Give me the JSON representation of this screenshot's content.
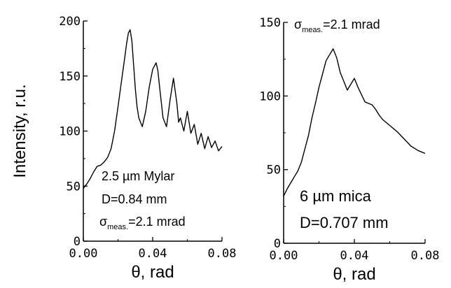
{
  "chart_data": [
    {
      "type": "line",
      "xlabel": "θ, rad",
      "ylabel": "Intensity, r.u.",
      "xlim": [
        0.0,
        0.08
      ],
      "ylim": [
        0,
        200
      ],
      "xticks": [
        "0.00",
        "0.04",
        "0.08"
      ],
      "yticks": [
        "0",
        "50",
        "100",
        "150",
        "200"
      ],
      "grid": false,
      "annotations": [
        {
          "id": "thickness",
          "text": "2.5 µm Mylar"
        },
        {
          "id": "diameter",
          "text": "D=0.84 mm"
        },
        {
          "id": "sigma",
          "symbol": "σ",
          "subscript": "meas.",
          "value": "=2.1 mrad"
        }
      ],
      "series": [
        {
          "x": [
            0.0,
            0.002,
            0.004,
            0.006,
            0.008,
            0.01,
            0.012,
            0.014,
            0.016,
            0.018,
            0.02,
            0.022,
            0.024,
            0.025,
            0.026,
            0.027,
            0.028,
            0.029,
            0.03,
            0.031,
            0.032,
            0.034,
            0.036,
            0.038,
            0.04,
            0.042,
            0.043,
            0.044,
            0.046,
            0.048,
            0.05,
            0.052,
            0.054,
            0.055,
            0.056,
            0.058,
            0.06,
            0.062,
            0.064,
            0.066,
            0.068,
            0.07,
            0.072,
            0.074,
            0.076,
            0.078,
            0.08
          ],
          "y": [
            48,
            52,
            57,
            63,
            68,
            69,
            72,
            76,
            84,
            100,
            122,
            145,
            168,
            180,
            189,
            192,
            182,
            160,
            138,
            122,
            112,
            104,
            118,
            140,
            156,
            162,
            155,
            140,
            112,
            104,
            128,
            148,
            125,
            108,
            112,
            100,
            118,
            98,
            106,
            88,
            98,
            84,
            95,
            85,
            91,
            82,
            86
          ]
        }
      ]
    },
    {
      "type": "line",
      "xlabel": "θ, rad",
      "ylabel": "",
      "xlim": [
        0.0,
        0.08
      ],
      "ylim": [
        0,
        150
      ],
      "xticks": [
        "0.00",
        "0.04",
        "0.08"
      ],
      "yticks": [
        "0",
        "50",
        "100",
        "150"
      ],
      "grid": false,
      "annotations": [
        {
          "id": "sigma",
          "symbol": "σ",
          "subscript": "meas.",
          "value": "=2.1 mrad"
        },
        {
          "id": "thickness",
          "text": "6 µm mica"
        },
        {
          "id": "diameter",
          "text": "D=0.707 mm"
        }
      ],
      "series": [
        {
          "x": [
            0.0,
            0.002,
            0.004,
            0.006,
            0.008,
            0.01,
            0.012,
            0.014,
            0.016,
            0.018,
            0.02,
            0.022,
            0.024,
            0.026,
            0.028,
            0.03,
            0.032,
            0.034,
            0.036,
            0.038,
            0.04,
            0.042,
            0.044,
            0.046,
            0.048,
            0.05,
            0.052,
            0.054,
            0.056,
            0.06,
            0.064,
            0.068,
            0.072,
            0.076,
            0.08
          ],
          "y": [
            32,
            37,
            41,
            45,
            49,
            55,
            64,
            73,
            85,
            95,
            106,
            115,
            124,
            128,
            132,
            126,
            116,
            110,
            104,
            108,
            112,
            106,
            101,
            96,
            95,
            94,
            91,
            87,
            84,
            80,
            76,
            71,
            66,
            63,
            61
          ]
        }
      ]
    }
  ]
}
